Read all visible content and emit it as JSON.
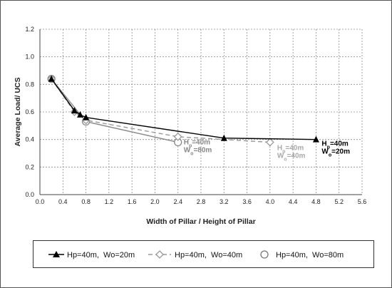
{
  "colors": {
    "series1": "#000000",
    "series2": "#999999",
    "series3": "#888888",
    "grid": "#8c8c8c",
    "background": "#ffffff"
  },
  "chart_data": {
    "type": "line",
    "xlabel": "Width of Pillar / Height of Pillar",
    "ylabel": "Average Load/ UCS",
    "xlim": [
      0.0,
      5.6
    ],
    "ylim": [
      0.0,
      1.2
    ],
    "x_ticks": [
      "0.0",
      "0.4",
      "0.8",
      "1.2",
      "1.6",
      "2.0",
      "2.4",
      "2.8",
      "3.2",
      "3.6",
      "4.0",
      "4.4",
      "4.8",
      "5.2",
      "5.6"
    ],
    "y_ticks": [
      "0.0",
      "0.2",
      "0.4",
      "0.6",
      "0.8",
      "1.0",
      "1.2"
    ],
    "grid": true,
    "legend_position": "bottom",
    "series": [
      {
        "name": "Hp=40m,  Wo=20m",
        "marker": "filled-triangle",
        "line": "solid",
        "points": [
          {
            "x": 0.2,
            "y": 0.84
          },
          {
            "x": 0.6,
            "y": 0.61
          },
          {
            "x": 0.7,
            "y": 0.58
          },
          {
            "x": 0.8,
            "y": 0.56
          },
          {
            "x": 3.2,
            "y": 0.41
          },
          {
            "x": 4.8,
            "y": 0.4
          }
        ]
      },
      {
        "name": "Hp=40m,  Wo=40m",
        "marker": "open-diamond",
        "line": "dashed",
        "points": [
          {
            "x": 0.2,
            "y": 0.84
          },
          {
            "x": 0.6,
            "y": 0.6
          },
          {
            "x": 0.8,
            "y": 0.54
          },
          {
            "x": 2.4,
            "y": 0.42
          },
          {
            "x": 4.0,
            "y": 0.38
          }
        ]
      },
      {
        "name": "Hp=40m,  Wo=80m",
        "marker": "open-circle",
        "line": "solid",
        "points": [
          {
            "x": 0.2,
            "y": 0.84
          },
          {
            "x": 0.8,
            "y": 0.53
          },
          {
            "x": 2.4,
            "y": 0.38
          }
        ]
      }
    ],
    "annotations": [
      {
        "series": 0,
        "at_x": 4.8,
        "at_y": 0.4,
        "line1": "Hp=40m",
        "line2": "Wo=20m",
        "color": "#000000"
      },
      {
        "series": 1,
        "at_x": 4.0,
        "at_y": 0.38,
        "line1": "Hp=40m",
        "line2": "Wo=40m",
        "color": "#aaaaaa"
      },
      {
        "series": 2,
        "at_x": 2.4,
        "at_y": 0.38,
        "line1": "Hp=40m",
        "line2": "Wo=80m",
        "color": "#888888"
      }
    ]
  }
}
